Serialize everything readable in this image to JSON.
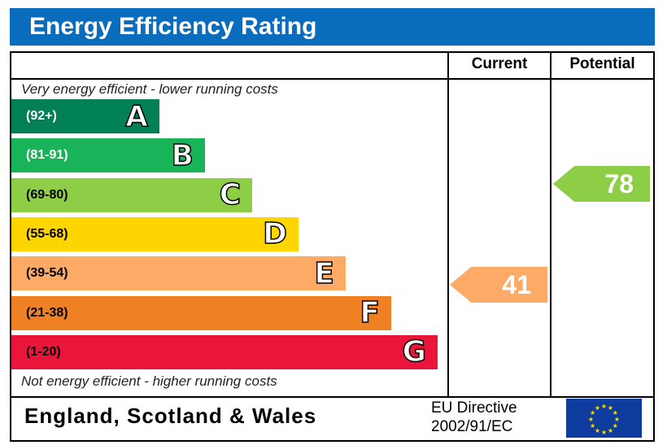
{
  "title": "Energy Efficiency Rating",
  "columns": {
    "current": "Current",
    "potential": "Potential"
  },
  "notes": {
    "top": "Very energy efficient - lower running costs",
    "bottom": "Not energy efficient - higher running costs"
  },
  "footer": {
    "region": "England, Scotland & Wales",
    "directive_line1": "EU Directive",
    "directive_line2": "2002/91/EC"
  },
  "chart_data": {
    "type": "bar",
    "bands": [
      {
        "letter": "A",
        "range": "(92+)",
        "color": "#008054"
      },
      {
        "letter": "B",
        "range": "(81-91)",
        "color": "#19b459"
      },
      {
        "letter": "C",
        "range": "(69-80)",
        "color": "#8dce46"
      },
      {
        "letter": "D",
        "range": "(55-68)",
        "color": "#ffd500"
      },
      {
        "letter": "E",
        "range": "(39-54)",
        "color": "#fcaa65"
      },
      {
        "letter": "F",
        "range": "(21-38)",
        "color": "#ef8023"
      },
      {
        "letter": "G",
        "range": "(1-20)",
        "color": "#e9153b"
      }
    ],
    "current": {
      "value": "41",
      "band": "E",
      "color": "#fcaa65"
    },
    "potential": {
      "value": "78",
      "band": "C",
      "color": "#8dce46"
    }
  }
}
